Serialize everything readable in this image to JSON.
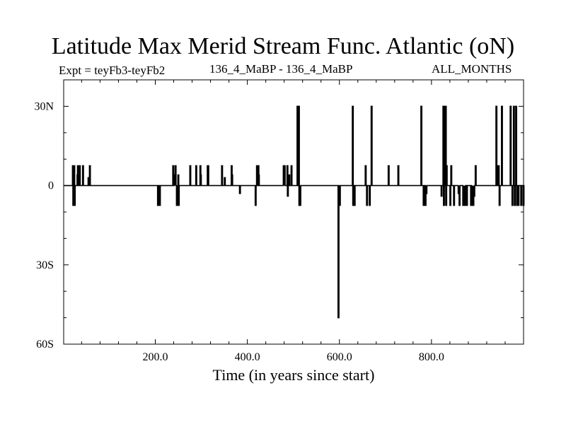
{
  "chart_data": {
    "type": "line",
    "title": "Latitude Max Merid Stream Func. Atlantic (oN)",
    "subtitle_left": "Expt = teyFb3-teyFb2",
    "subtitle_center": "136_4_MaBP - 136_4_MaBP",
    "subtitle_right": "ALL_MONTHS",
    "xlabel": "Time (in years since start)",
    "ylabel": "",
    "xlim": [
      1,
      1000
    ],
    "ylim": [
      -60,
      40
    ],
    "x_ticks": [
      200,
      400,
      600,
      800
    ],
    "x_tick_labels": [
      "200.0",
      "400.0",
      "600.0",
      "800.0"
    ],
    "y_ticks": [
      30,
      0,
      -30,
      -60
    ],
    "y_tick_labels": [
      "30N",
      "0",
      "30S",
      "60S"
    ],
    "grid": false,
    "series": [
      {
        "name": "Latitude Max",
        "color": "#000000",
        "baseline": 0,
        "spikes": [
          [
            20,
            7.5
          ],
          [
            21,
            -7.5
          ],
          [
            22,
            -7.5
          ],
          [
            23,
            7.5
          ],
          [
            24,
            -7.5
          ],
          [
            30,
            4
          ],
          [
            31,
            7.5
          ],
          [
            32,
            7.5
          ],
          [
            34,
            4
          ],
          [
            35,
            7.5
          ],
          [
            42,
            7.5
          ],
          [
            54,
            3
          ],
          [
            57,
            7.5
          ],
          [
            205,
            -7.5
          ],
          [
            206,
            -7.5
          ],
          [
            208,
            -7.5
          ],
          [
            209,
            -7.5
          ],
          [
            238,
            7.5
          ],
          [
            241,
            4
          ],
          [
            243,
            7.5
          ],
          [
            246,
            -7.5
          ],
          [
            248,
            -7.5
          ],
          [
            249,
            4
          ],
          [
            250,
            -7.5
          ],
          [
            275,
            7.5
          ],
          [
            288,
            7.5
          ],
          [
            297,
            7.5
          ],
          [
            298,
            4
          ],
          [
            313,
            7.5
          ],
          [
            314,
            7.5
          ],
          [
            344,
            7.5
          ],
          [
            350,
            3
          ],
          [
            365,
            7.5
          ],
          [
            366,
            4
          ],
          [
            383,
            -3
          ],
          [
            417,
            -7.5
          ],
          [
            420,
            7.5
          ],
          [
            421,
            7.5
          ],
          [
            423,
            7.5
          ],
          [
            424,
            4
          ],
          [
            478,
            7.5
          ],
          [
            480,
            7.5
          ],
          [
            486,
            7.5
          ],
          [
            487,
            -4
          ],
          [
            490,
            4
          ],
          [
            495,
            7.5
          ],
          [
            508,
            30
          ],
          [
            509,
            30
          ],
          [
            510,
            30
          ],
          [
            511,
            30
          ],
          [
            512,
            -7.5
          ],
          [
            514,
            -7.5
          ],
          [
            597,
            -50
          ],
          [
            598,
            -5
          ],
          [
            600,
            -7.5
          ],
          [
            628,
            30
          ],
          [
            629,
            -7.5
          ],
          [
            632,
            -7.5
          ],
          [
            656,
            7.5
          ],
          [
            659,
            -7.5
          ],
          [
            665,
            -7.5
          ],
          [
            669,
            30
          ],
          [
            706,
            7.5
          ],
          [
            727,
            7.5
          ],
          [
            777,
            30
          ],
          [
            782,
            -7.5
          ],
          [
            785,
            -7.5
          ],
          [
            786,
            -7.5
          ],
          [
            788,
            -3
          ],
          [
            821,
            -4
          ],
          [
            825,
            30
          ],
          [
            826,
            -7.5
          ],
          [
            827,
            30
          ],
          [
            828,
            30
          ],
          [
            830,
            30
          ],
          [
            831,
            -7.5
          ],
          [
            832,
            7.5
          ],
          [
            840,
            -7.5
          ],
          [
            842,
            7.5
          ],
          [
            848,
            -7.5
          ],
          [
            858,
            -3
          ],
          [
            860,
            -7.5
          ],
          [
            868,
            -7.5
          ],
          [
            870,
            -7.5
          ],
          [
            872,
            -7.5
          ],
          [
            876,
            -7.5
          ],
          [
            885,
            -7.5
          ],
          [
            886,
            -7.5
          ],
          [
            888,
            -7.5
          ],
          [
            890,
            -7.5
          ],
          [
            892,
            -4
          ],
          [
            895,
            7.5
          ],
          [
            940,
            30
          ],
          [
            941,
            7.5
          ],
          [
            945,
            7.5
          ],
          [
            947,
            -7.5
          ],
          [
            952,
            30
          ],
          [
            971,
            30
          ],
          [
            975,
            -7.5
          ],
          [
            978,
            30
          ],
          [
            980,
            -7.5
          ],
          [
            983,
            30
          ],
          [
            985,
            -7.5
          ],
          [
            988,
            -7.5
          ],
          [
            994,
            -7.5
          ],
          [
            999,
            -7.5
          ]
        ]
      }
    ]
  }
}
